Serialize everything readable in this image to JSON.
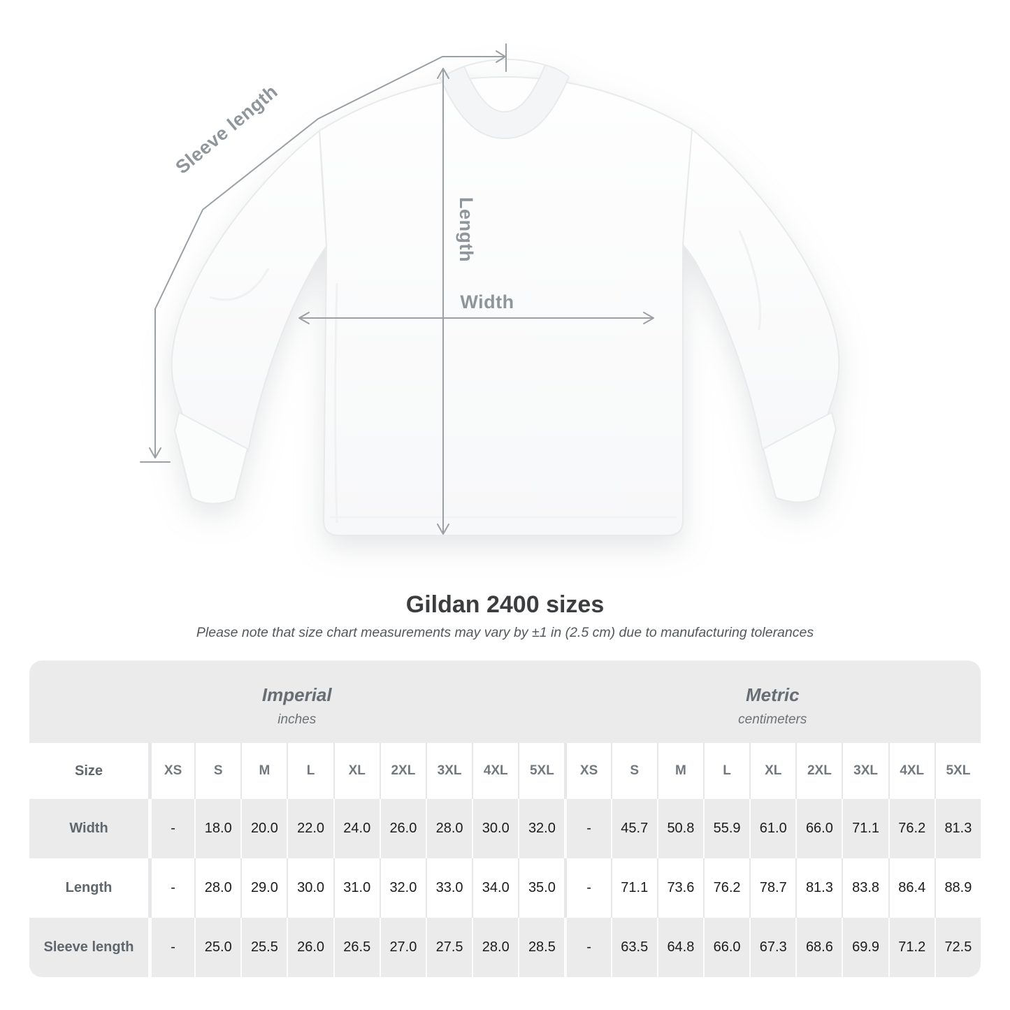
{
  "diagram": {
    "labels": {
      "sleeve_length": "Sleeve length",
      "length": "Length",
      "width": "Width"
    }
  },
  "title": "Gildan 2400 sizes",
  "subtitle": "Please note that size chart measurements may vary by ±1 in (2.5 cm) due to manufacturing tolerances",
  "table": {
    "unit_groups": [
      {
        "name": "Imperial",
        "unit": "inches"
      },
      {
        "name": "Metric",
        "unit": "centimeters"
      }
    ],
    "size_label": "Size",
    "sizes": [
      "XS",
      "S",
      "M",
      "L",
      "XL",
      "2XL",
      "3XL",
      "4XL",
      "5XL"
    ],
    "rows": [
      {
        "label": "Width",
        "imperial": [
          "-",
          "18.0",
          "20.0",
          "22.0",
          "24.0",
          "26.0",
          "28.0",
          "30.0",
          "32.0"
        ],
        "metric": [
          "-",
          "45.7",
          "50.8",
          "55.9",
          "61.0",
          "66.0",
          "71.1",
          "76.2",
          "81.3"
        ]
      },
      {
        "label": "Length",
        "imperial": [
          "-",
          "28.0",
          "29.0",
          "30.0",
          "31.0",
          "32.0",
          "33.0",
          "34.0",
          "35.0"
        ],
        "metric": [
          "-",
          "71.1",
          "73.6",
          "76.2",
          "78.7",
          "81.3",
          "83.8",
          "86.4",
          "88.9"
        ]
      },
      {
        "label": "Sleeve length",
        "imperial": [
          "-",
          "25.0",
          "25.5",
          "26.0",
          "26.5",
          "27.0",
          "27.5",
          "28.0",
          "28.5"
        ],
        "metric": [
          "-",
          "63.5",
          "64.8",
          "66.0",
          "67.3",
          "68.6",
          "69.9",
          "71.2",
          "72.5"
        ]
      }
    ]
  },
  "colors": {
    "page_bg": "#ffffff",
    "card_gray": "#ebebeb",
    "measure_line": "#9aa0a4",
    "measure_label": "#8f969b",
    "title_text": "#3b3d3f",
    "value_text": "#1c1c1e",
    "header_text": "#72787d"
  }
}
